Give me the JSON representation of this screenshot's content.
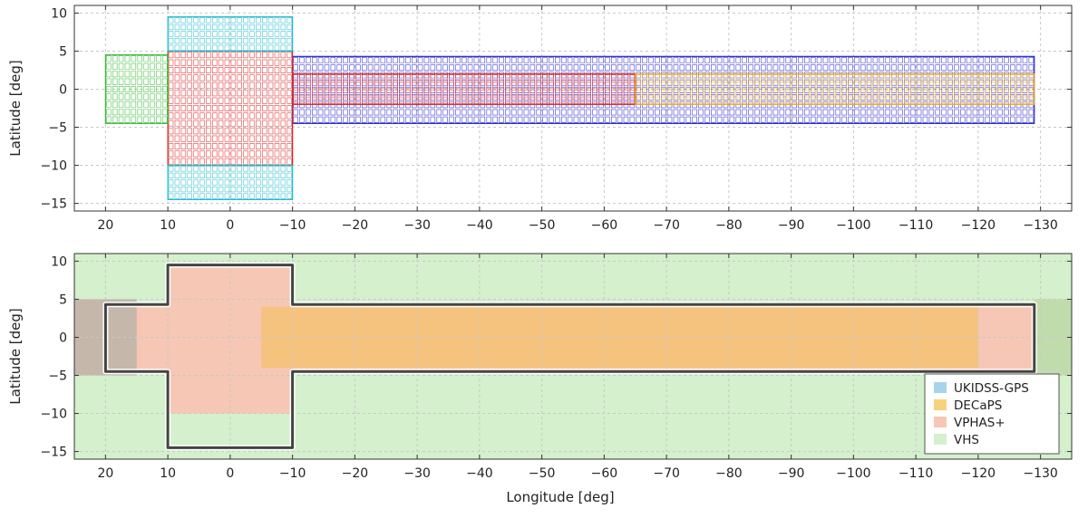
{
  "chart_data": [
    {
      "id": "top",
      "type": "footprint-tiles",
      "xlim": [
        25,
        -135
      ],
      "ylim": [
        -16,
        11
      ],
      "xticks": [
        20,
        10,
        0,
        -10,
        -20,
        -30,
        -40,
        -50,
        -60,
        -70,
        -80,
        -90,
        -100,
        -110,
        -120,
        -130
      ],
      "yticks": [
        10,
        5,
        0,
        -5,
        -10,
        -15
      ],
      "xlabel": "",
      "ylabel": "Latitude [deg]",
      "grid": true,
      "regions": [
        {
          "color": "#2222cc",
          "lon": [
            -10,
            -129
          ],
          "lat": [
            -4.5,
            4.3
          ]
        },
        {
          "color": "#dd2222",
          "lon": [
            10,
            -10
          ],
          "lat": [
            -10,
            5
          ]
        },
        {
          "color": "#dd2222",
          "lon": [
            -10,
            -65
          ],
          "lat": [
            -2,
            2
          ]
        },
        {
          "color": "#eeaa22",
          "lon": [
            -65,
            -129
          ],
          "lat": [
            -2,
            2
          ]
        },
        {
          "color": "#22bbcc",
          "lon": [
            10,
            -10
          ],
          "lat": [
            5,
            9.5
          ]
        },
        {
          "color": "#22bbcc",
          "lon": [
            10,
            -10
          ],
          "lat": [
            -14.5,
            -10
          ]
        },
        {
          "color": "#33bb33",
          "lon": [
            20,
            10
          ],
          "lat": [
            -4.5,
            4.5
          ]
        }
      ]
    },
    {
      "id": "bottom",
      "type": "footprint-areas",
      "xlim": [
        25,
        -135
      ],
      "ylim": [
        -16,
        11
      ],
      "xticks": [
        20,
        10,
        0,
        -10,
        -20,
        -30,
        -40,
        -50,
        -60,
        -70,
        -80,
        -90,
        -100,
        -110,
        -120,
        -130
      ],
      "yticks": [
        10,
        5,
        0,
        -5,
        -10,
        -15
      ],
      "xlabel": "Longitude [deg]",
      "ylabel": "Latitude [deg]",
      "grid": true,
      "legend_position": "lower-right",
      "legend": [
        {
          "name": "UKIDSS-GPS",
          "color": "#a7d3ec"
        },
        {
          "name": "DECaPS",
          "color": "#f6d27a"
        },
        {
          "name": "VPHAS+",
          "color": "#f6c7b4"
        },
        {
          "name": "VHS",
          "color": "#d4f0cc"
        }
      ],
      "areas": [
        {
          "survey": "VHS",
          "color": "#d4f0cc",
          "lon": [
            25,
            -135
          ],
          "lat": [
            -16,
            11
          ]
        },
        {
          "survey": "VPHAS+",
          "color": "#f6c7b4",
          "lon": [
            10,
            -10
          ],
          "lat": [
            -10,
            9.5
          ]
        },
        {
          "survey": "VPHAS+",
          "color": "#f6c7b4",
          "lon": [
            20,
            -129
          ],
          "lat": [
            -4.5,
            4.5
          ]
        },
        {
          "survey": "DECaPS",
          "color": "#f5c37e",
          "lon": [
            -5,
            -120
          ],
          "lat": [
            -4,
            4
          ]
        },
        {
          "survey": "overlap",
          "color": "#c6b7ab",
          "lon": [
            25,
            15
          ],
          "lat": [
            -5,
            5
          ]
        },
        {
          "survey": "overlap",
          "color": "#c0dcac",
          "lon": [
            -129,
            -135
          ],
          "lat": [
            -5,
            5
          ]
        }
      ],
      "outline_polygon": [
        [
          20,
          4.3
        ],
        [
          10,
          4.3
        ],
        [
          10,
          9.5
        ],
        [
          -10,
          9.5
        ],
        [
          -10,
          4.3
        ],
        [
          -129,
          4.3
        ],
        [
          -129,
          -4.5
        ],
        [
          -10,
          -4.5
        ],
        [
          -10,
          -14.5
        ],
        [
          10,
          -14.5
        ],
        [
          10,
          -4.5
        ],
        [
          20,
          -4.5
        ]
      ]
    }
  ]
}
